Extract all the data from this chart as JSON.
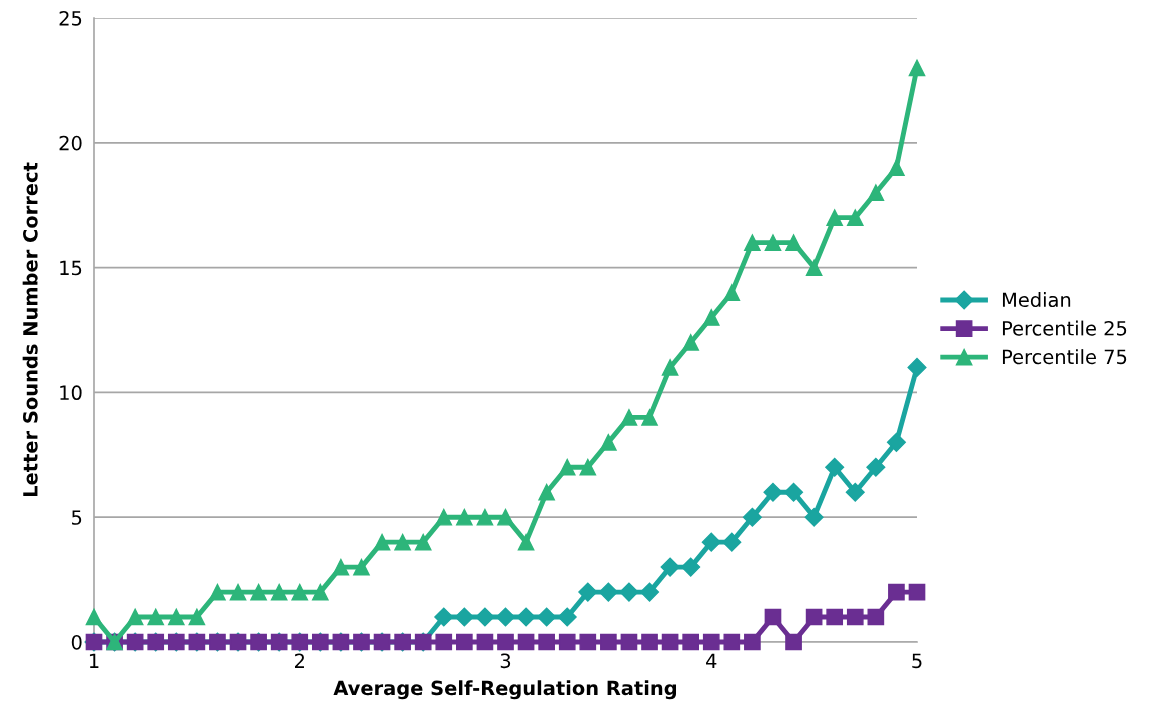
{
  "chart_data": {
    "type": "line",
    "xlabel": "Average Self-Regulation Rating",
    "ylabel": "Letter Sounds Number Correct",
    "x": [
      1.0,
      1.1,
      1.2,
      1.3,
      1.4,
      1.5,
      1.6,
      1.7,
      1.8,
      1.9,
      2.0,
      2.1,
      2.2,
      2.3,
      2.4,
      2.5,
      2.6,
      2.7,
      2.8,
      2.9,
      3.0,
      3.1,
      3.2,
      3.3,
      3.4,
      3.5,
      3.6,
      3.7,
      3.8,
      3.9,
      4.0,
      4.1,
      4.2,
      4.3,
      4.4,
      4.5,
      4.6,
      4.7,
      4.8,
      4.9,
      5.0
    ],
    "series": [
      {
        "name": "Median",
        "color": "#1aa5a0",
        "marker": "diamond",
        "values": [
          0,
          0,
          0,
          0,
          0,
          0,
          0,
          0,
          0,
          0,
          0,
          0,
          0,
          0,
          0,
          0,
          0,
          1,
          1,
          1,
          1,
          1,
          1,
          1,
          2,
          2,
          2,
          2,
          3,
          3,
          4,
          4,
          5,
          6,
          6,
          5,
          7,
          6,
          7,
          8,
          11
        ]
      },
      {
        "name": "Percentile 25",
        "color": "#6a2e92",
        "marker": "square",
        "values": [
          0,
          0,
          0,
          0,
          0,
          0,
          0,
          0,
          0,
          0,
          0,
          0,
          0,
          0,
          0,
          0,
          0,
          0,
          0,
          0,
          0,
          0,
          0,
          0,
          0,
          0,
          0,
          0,
          0,
          0,
          0,
          0,
          0,
          1,
          0,
          1,
          1,
          1,
          1,
          2,
          2
        ]
      },
      {
        "name": "Percentile 75",
        "color": "#2db57a",
        "marker": "triangle",
        "values": [
          1,
          0,
          1,
          1,
          1,
          1,
          2,
          2,
          2,
          2,
          2,
          2,
          3,
          3,
          4,
          4,
          4,
          5,
          5,
          5,
          5,
          4,
          6,
          7,
          7,
          8,
          9,
          9,
          11,
          12,
          13,
          14,
          16,
          16,
          16,
          15,
          17,
          17,
          18,
          19,
          23
        ]
      }
    ],
    "xlim": [
      1,
      5
    ],
    "xticks": [
      1,
      2,
      3,
      4,
      5
    ],
    "ylim": [
      0,
      25
    ],
    "yticks": [
      0,
      5,
      10,
      15,
      20,
      25
    ],
    "grid": "y",
    "legend": "right",
    "line_style": "solid"
  }
}
